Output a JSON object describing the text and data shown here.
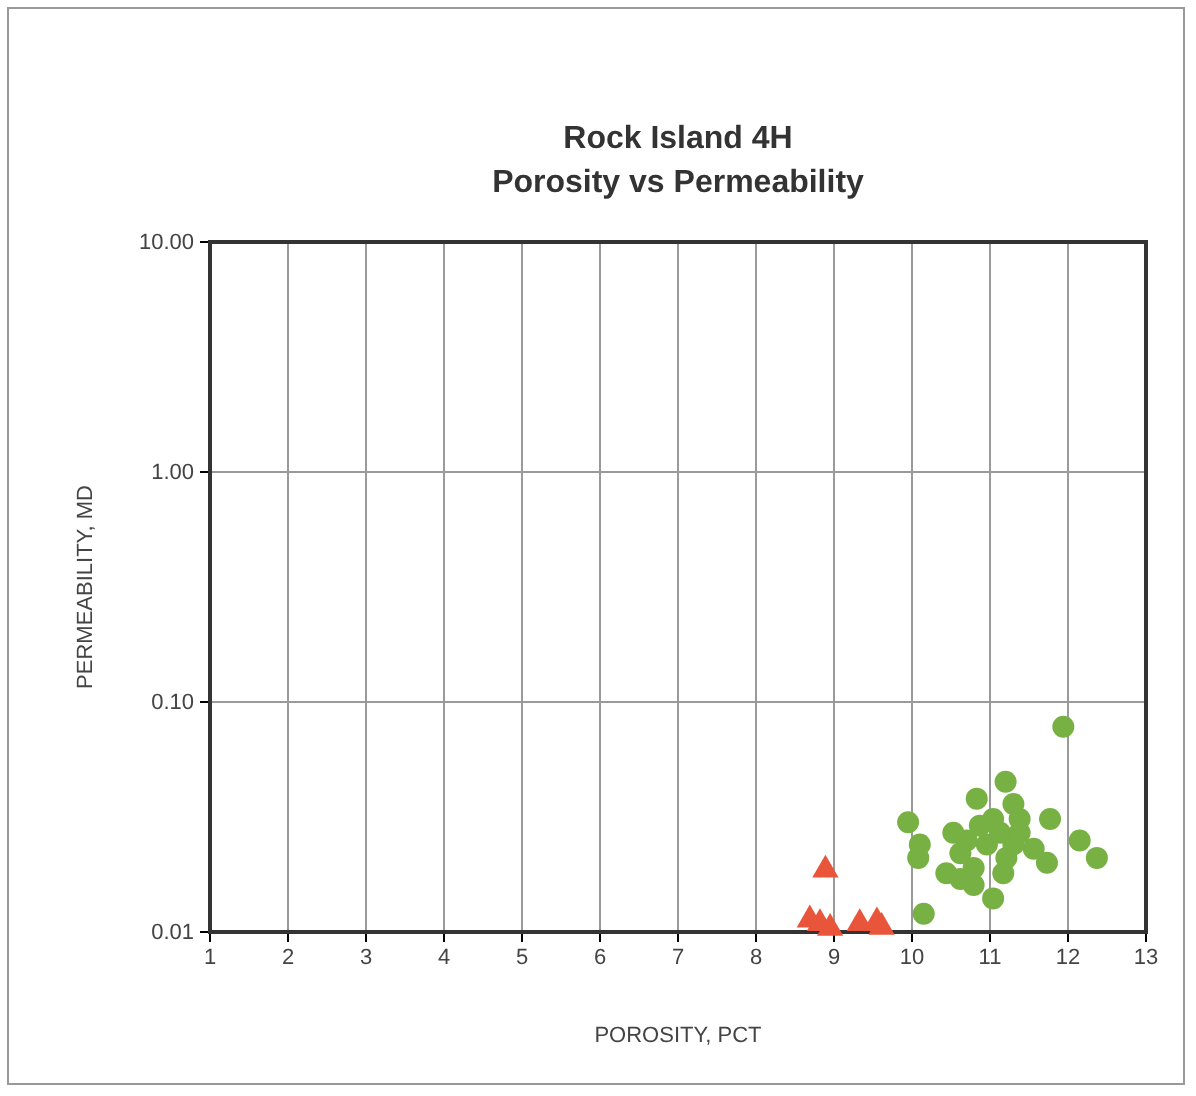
{
  "chart_data": {
    "type": "scatter",
    "title": "Rock Island 4H",
    "subtitle": "Porosity vs Permeability",
    "xlabel": "POROSITY, PCT",
    "ylabel": "PERMEABILITY, MD",
    "log": "y",
    "grid": true,
    "xlim": [
      1,
      13
    ],
    "xticks": [
      1,
      2,
      3,
      4,
      5,
      6,
      7,
      8,
      9,
      10,
      11,
      12,
      13
    ],
    "ylim": [
      0.01,
      10
    ],
    "yticks": [
      {
        "value": 0.01,
        "label": "0.01"
      },
      {
        "value": 0.1,
        "label": "0.10"
      },
      {
        "value": 1,
        "label": "1.00"
      },
      {
        "value": 10,
        "label": "10.00"
      }
    ],
    "series": [
      {
        "color": "#e8553a",
        "marker": "triangle",
        "x": [
          8.89,
          8.69,
          8.82,
          8.95,
          9.33,
          9.55,
          9.61
        ],
        "values": [
          0.0186,
          0.0113,
          0.0109,
          0.0104,
          0.0109,
          0.0111,
          0.0105
        ]
      },
      {
        "color": "#77b043",
        "marker": "circle",
        "x": [
          11.94,
          9.95,
          10.1,
          10.08,
          10.15,
          10.83,
          11.2,
          11.04,
          12.15,
          12.37,
          11.56,
          11.73,
          11.77,
          11.47,
          11.3,
          10.53,
          10.44,
          10.62,
          10.79,
          10.96,
          11.13,
          11.04,
          10.87,
          10.7,
          11.21,
          11.3,
          11.38,
          11.17,
          10.79,
          11.38,
          10.62
        ],
        "values": [
          0.078,
          0.03,
          0.024,
          0.021,
          0.012,
          0.038,
          0.045,
          0.014,
          0.025,
          0.021,
          0.023,
          0.02,
          0.031,
          null,
          0.036,
          0.027,
          0.018,
          0.017,
          0.019,
          0.024,
          0.027,
          0.031,
          0.029,
          0.025,
          0.021,
          0.024,
          0.027,
          0.018,
          0.016,
          0.031,
          0.022
        ]
      }
    ]
  }
}
